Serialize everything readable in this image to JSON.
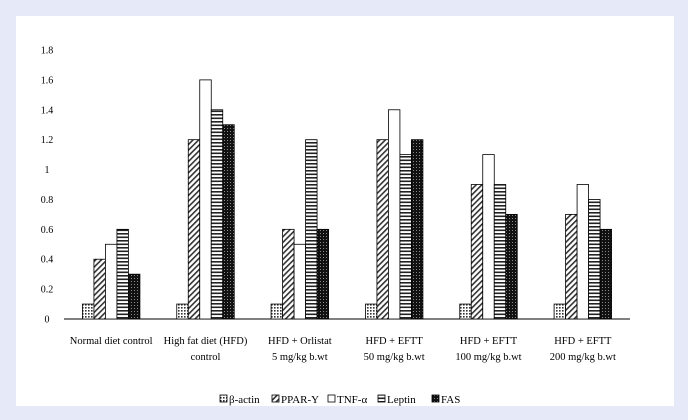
{
  "chart_data": {
    "type": "bar",
    "title": "",
    "xlabel": "",
    "ylabel": "",
    "ylim": [
      0,
      1.8
    ],
    "yticks": [
      "0",
      "0.2",
      "0.4",
      "0.6",
      "0.8",
      "1",
      "1.2",
      "1.4",
      "1.6",
      "1.8"
    ],
    "grid": false,
    "legend_position": "bottom",
    "categories": [
      [
        "Normal diet control"
      ],
      [
        "High fat diet (HFD)",
        "control"
      ],
      [
        "HFD + Orlistat",
        "5 mg/kg b.wt"
      ],
      [
        "HFD + EFTT",
        "50 mg/kg b.wt"
      ],
      [
        "HFD + EFTT",
        "100 mg/kg b.wt"
      ],
      [
        "HFD + EFTT",
        "200 mg/kg b.wt"
      ]
    ],
    "series": [
      {
        "name": "β-actin",
        "pattern": "dots",
        "values": [
          0.1,
          0.1,
          0.1,
          0.1,
          0.1,
          0.1
        ]
      },
      {
        "name": "PPAR-Υ",
        "pattern": "diag",
        "values": [
          0.4,
          1.2,
          0.6,
          1.2,
          0.9,
          0.7
        ]
      },
      {
        "name": "TNF-α",
        "pattern": "white",
        "values": [
          0.5,
          1.6,
          0.5,
          1.4,
          1.1,
          0.9
        ]
      },
      {
        "name": "Leptin",
        "pattern": "hlines",
        "values": [
          0.6,
          1.4,
          1.2,
          1.1,
          0.9,
          0.8
        ]
      },
      {
        "name": "FAS",
        "pattern": "dense",
        "values": [
          0.3,
          1.3,
          0.6,
          1.2,
          0.7,
          0.6
        ]
      }
    ]
  }
}
